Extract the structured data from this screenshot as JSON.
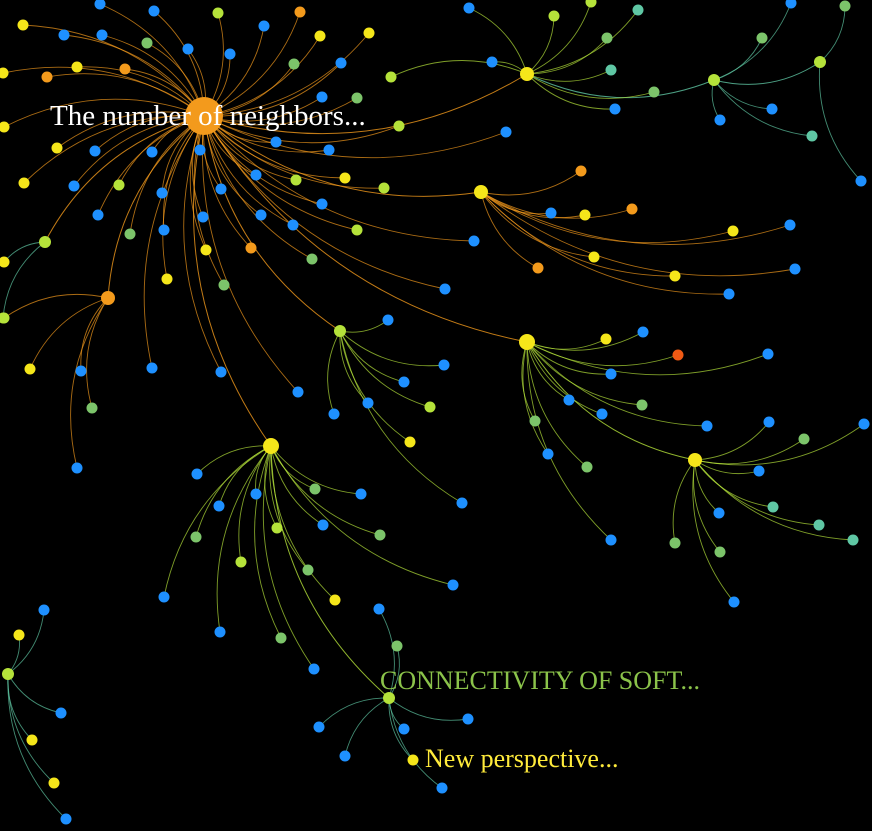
{
  "graph": {
    "labels": [
      {
        "id": "hub-main",
        "text": "The number of neighbors...",
        "color": "#ffffff"
      },
      {
        "id": "soft",
        "text": "CONNECTIVITY OF SOFT...",
        "color": "#8bc34a"
      },
      {
        "id": "new",
        "text": "New perspective...",
        "color": "#ffeb3b"
      }
    ],
    "palette": {
      "background": "#000000",
      "blue": "#1e90ff",
      "yellow": "#f5e61a",
      "lime": "#b5e23a",
      "green": "#7cc46a",
      "teal": "#5fc7a4",
      "orange": "#f39a1c",
      "red": "#f05a14"
    }
  }
}
